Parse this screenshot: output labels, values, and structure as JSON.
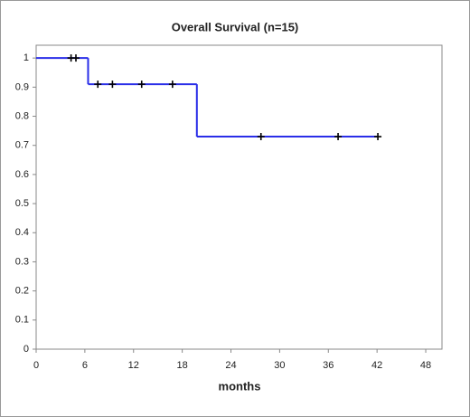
{
  "chart_data": {
    "type": "survival",
    "title": "Overall Survival (n=15)",
    "x_label": "months",
    "series": [
      {
        "name": "survival",
        "color": "#2a2ee8",
        "x": [
          0,
          6.4,
          19.8,
          42
        ],
        "values": [
          1,
          0.91,
          0.73,
          0.73
        ]
      },
      {
        "name": "censored",
        "color": "#000000",
        "x": [
          4.3,
          4.9,
          7.6,
          9.4,
          13,
          16.8,
          27.7,
          37.2,
          42.1
        ],
        "values": [
          1,
          1,
          0.91,
          0.91,
          0.91,
          0.91,
          0.73,
          0.73,
          0.73
        ]
      }
    ],
    "xlim": [
      0,
      50
    ],
    "xticks": [
      0,
      6,
      12,
      18,
      24,
      30,
      36,
      42,
      48
    ],
    "ylim": [
      0,
      1.044
    ],
    "yticks": [
      0,
      0.1,
      0.2,
      0.3,
      0.4,
      0.5,
      0.6,
      0.7,
      0.8,
      0.9,
      1
    ],
    "grid": false
  }
}
